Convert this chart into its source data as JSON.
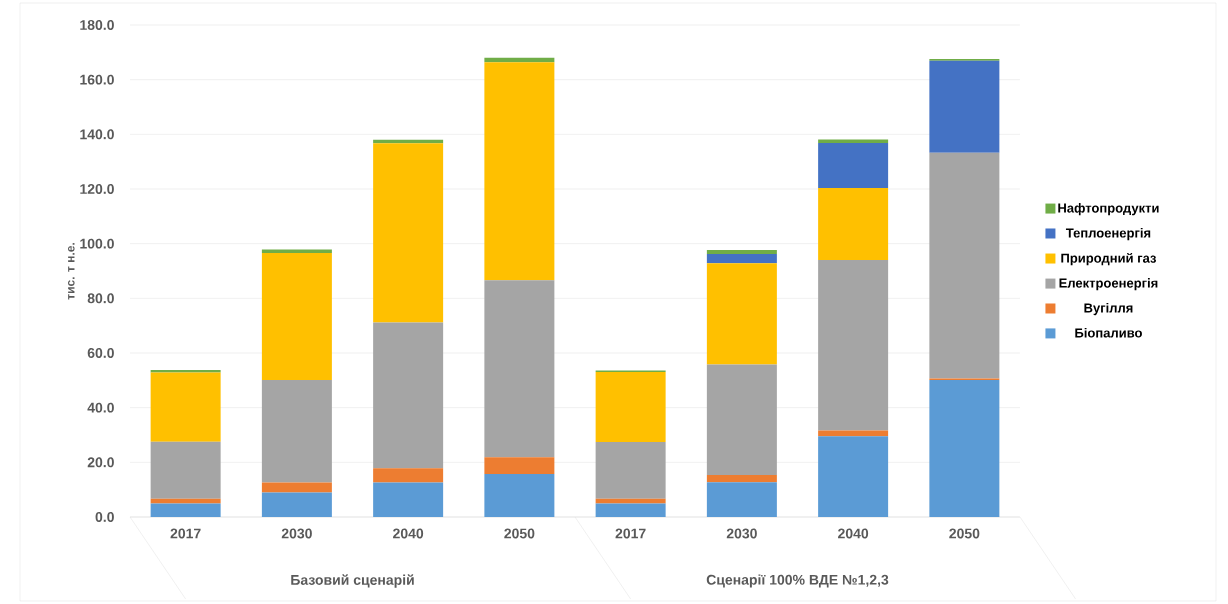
{
  "chart_data": {
    "type": "bar",
    "stacked": true,
    "ylabel": "тис. т н.е.",
    "categories": [
      "2017",
      "2030",
      "2040",
      "2050",
      "2017",
      "2030",
      "2040",
      "2050"
    ],
    "annotations": [
      "Базовий сценарій",
      "Сценарії 100% ВДЕ №1,2,3"
    ],
    "series": [
      {
        "name": "Біопаливо",
        "color": "#5b9bd5",
        "values": [
          4.9,
          9.0,
          12.6,
          15.7,
          4.9,
          12.7,
          29.5,
          50.1
        ]
      },
      {
        "name": "Вугілля",
        "color": "#ed7d31",
        "values": [
          1.8,
          3.6,
          5.2,
          6.2,
          1.8,
          2.7,
          2.1,
          0.6
        ]
      },
      {
        "name": "Електроенергія",
        "color": "#a5a5a5",
        "values": [
          20.8,
          37.5,
          53.4,
          64.7,
          20.7,
          40.4,
          62.4,
          82.6
        ]
      },
      {
        "name": "Природний газ",
        "color": "#ffc000",
        "values": [
          25.4,
          46.5,
          65.5,
          79.8,
          25.6,
          37.0,
          26.4,
          0
        ]
      },
      {
        "name": "Теплоенергія",
        "color": "#4472c4",
        "values": [
          0,
          0,
          0,
          0,
          0,
          3.4,
          16.4,
          33.6
        ]
      },
      {
        "name": "Нафтопродукти",
        "color": "#70ad47",
        "values": [
          0.9,
          1.3,
          1.3,
          1.6,
          0.6,
          1.5,
          1.3,
          0.7
        ]
      }
    ],
    "ylim": [
      0,
      180
    ],
    "yticks": [
      {
        "value": 0,
        "label": "0.0"
      },
      {
        "value": 20,
        "label": "20.0"
      },
      {
        "value": 40,
        "label": "40.0"
      },
      {
        "value": 60,
        "label": "60.0"
      },
      {
        "value": 80,
        "label": "80.0"
      },
      {
        "value": 100,
        "label": "100.0"
      },
      {
        "value": 120,
        "label": "120.0"
      },
      {
        "value": 140,
        "label": "140.0"
      },
      {
        "value": 160,
        "label": "160.0"
      },
      {
        "value": 180,
        "label": "180.0"
      }
    ],
    "grid": "y",
    "legend": "right"
  }
}
